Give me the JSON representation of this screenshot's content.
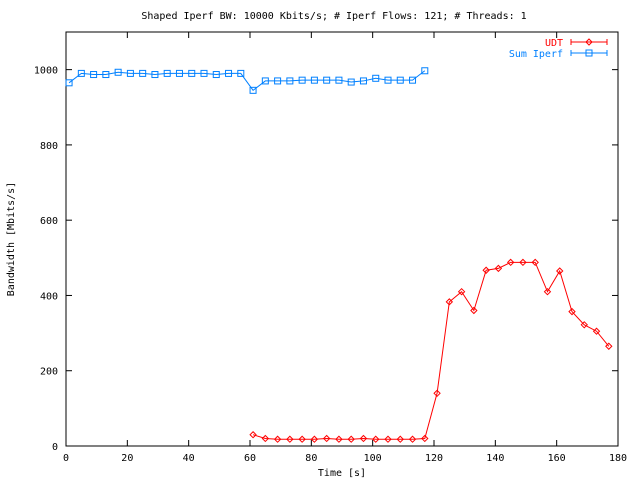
{
  "chart_data": {
    "type": "line",
    "title": "Shaped Iperf BW: 10000 Kbits/s; # Iperf Flows: 121; # Threads: 1",
    "xlabel": "Time [s]",
    "ylabel": "Bandwidth [Mbits/s]",
    "xlim": [
      0,
      180
    ],
    "ylim": [
      0,
      1100
    ],
    "x_ticks": [
      "0",
      "20",
      "40",
      "60",
      "80",
      "100",
      "120",
      "140",
      "160",
      "180"
    ],
    "y_ticks": [
      "0",
      "200",
      "400",
      "600",
      "800",
      "1000"
    ],
    "legend_position": "top-right",
    "grid": false,
    "series": [
      {
        "name": "UDT",
        "color": "#ff0000",
        "marker": "diamond",
        "x": [
          61,
          65,
          69,
          73,
          77,
          81,
          85,
          89,
          93,
          97,
          101,
          105,
          109,
          113,
          117,
          121,
          125,
          129,
          133,
          137,
          141,
          145,
          149,
          153,
          157,
          161,
          165,
          169,
          173,
          177
        ],
        "y": [
          30,
          20,
          18,
          18,
          18,
          18,
          20,
          18,
          18,
          20,
          18,
          18,
          18,
          18,
          20,
          140,
          383,
          410,
          360,
          467,
          472,
          488,
          488,
          488,
          410,
          465,
          357,
          322,
          305,
          265
        ]
      },
      {
        "name": "Sum Iperf",
        "color": "#0080ff",
        "marker": "square",
        "x": [
          1,
          5,
          9,
          13,
          17,
          21,
          25,
          29,
          33,
          37,
          41,
          45,
          49,
          53,
          57,
          61,
          65,
          69,
          73,
          77,
          81,
          85,
          89,
          93,
          97,
          101,
          105,
          109,
          113,
          117
        ],
        "y": [
          965,
          990,
          987,
          987,
          993,
          990,
          990,
          987,
          990,
          990,
          990,
          990,
          987,
          990,
          990,
          945,
          970,
          970,
          970,
          972,
          972,
          972,
          972,
          967,
          970,
          977,
          972,
          972,
          972,
          997
        ]
      }
    ]
  }
}
